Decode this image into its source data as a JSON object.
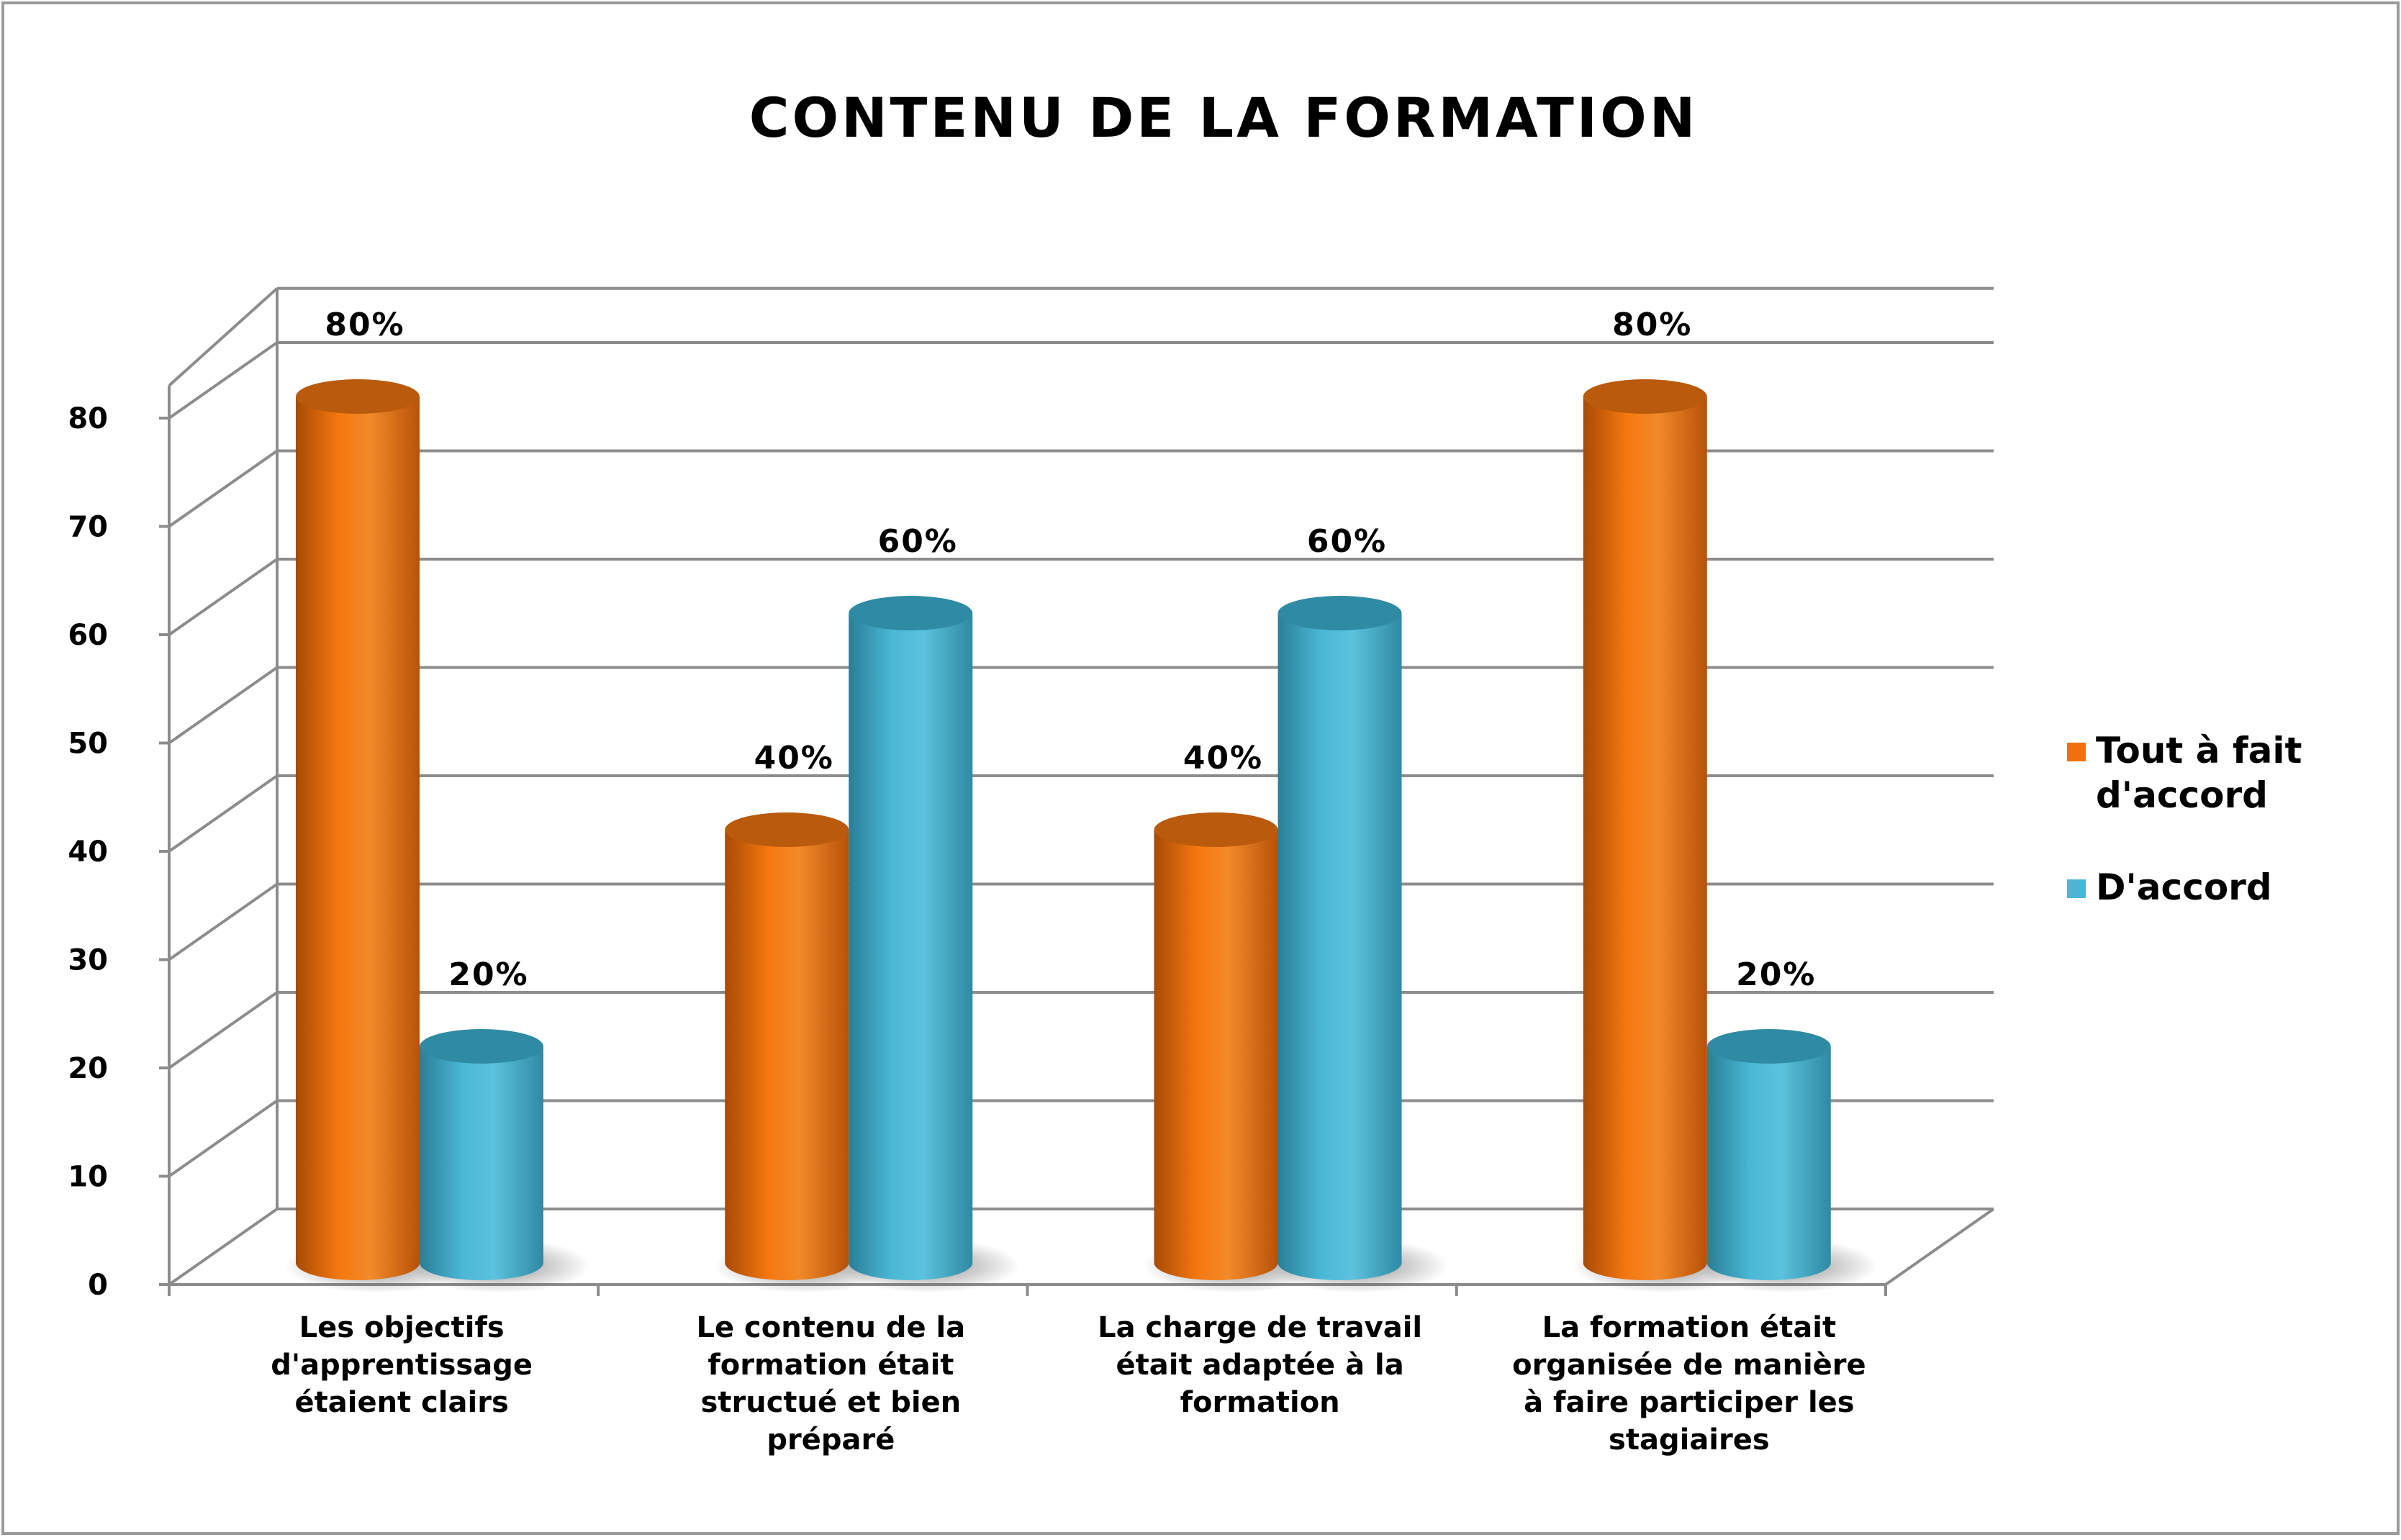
{
  "chart_data": {
    "type": "bar",
    "title": "CONTENU DE LA FORMATION",
    "xlabel": "",
    "ylabel": "",
    "ylim": [
      0,
      80
    ],
    "yticks": [
      0,
      10,
      20,
      30,
      40,
      50,
      60,
      70,
      80
    ],
    "grid": true,
    "legend_position": "right",
    "categories": [
      [
        "Les objectifs",
        "d'apprentissage",
        "étaient clairs"
      ],
      [
        "Le contenu de la",
        "formation était",
        "structué et bien",
        "préparé"
      ],
      [
        "La charge de travail",
        "était adaptée à la",
        "formation"
      ],
      [
        "La formation était",
        "organisée de manière",
        "à faire participer les",
        "stagiaires"
      ]
    ],
    "series": [
      {
        "name": "Tout à fait d'accord",
        "legend_lines": [
          "Tout à fait",
          "d'accord"
        ],
        "values": [
          80,
          40,
          40,
          80
        ],
        "labels": [
          "80%",
          "40%",
          "40%",
          "80%"
        ],
        "color": "#f07010"
      },
      {
        "name": "D'accord",
        "legend_lines": [
          "D'accord"
        ],
        "values": [
          20,
          60,
          60,
          20
        ],
        "labels": [
          "20%",
          "60%",
          "60%",
          "20%"
        ],
        "color": "#4ab6d4"
      }
    ]
  }
}
